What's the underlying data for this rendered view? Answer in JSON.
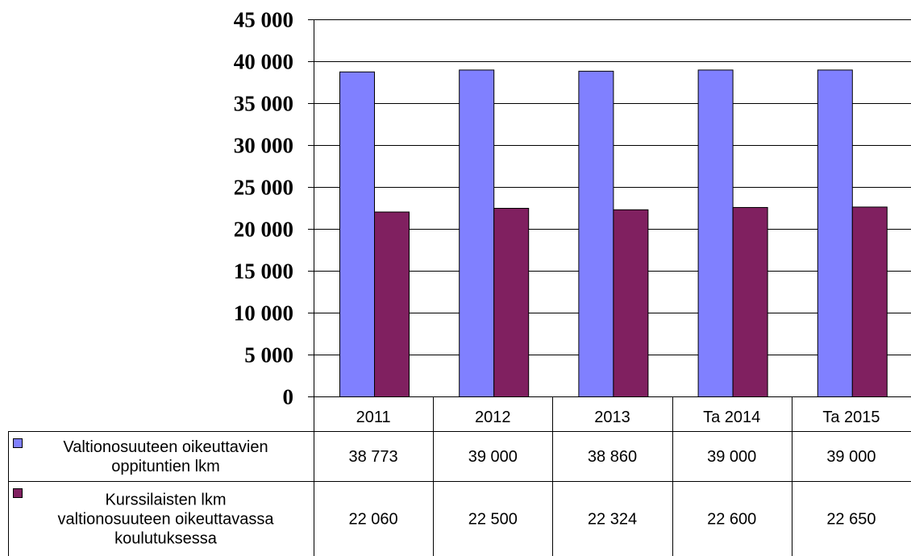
{
  "chart_data": {
    "type": "bar",
    "categories": [
      "2011",
      "2012",
      "2013",
      "Ta 2014",
      "Ta 2015"
    ],
    "series": [
      {
        "name": "Valtionosuuteen oikeuttavien oppituntien lkm",
        "name_lines": [
          "Valtionosuuteen oikeuttavien",
          "oppituntien lkm"
        ],
        "color": "#8080ff",
        "values": [
          38773,
          39000,
          38860,
          39000,
          39000
        ],
        "value_labels": [
          "38 773",
          "39 000",
          "38 860",
          "39 000",
          "39 000"
        ]
      },
      {
        "name": "Kurssilaisten lkm valtionosuuteen oikeuttavassa koulutuksessa",
        "name_lines": [
          "Kurssilaisten lkm",
          "valtionosuuteen oikeuttavassa",
          "koulutuksessa"
        ],
        "color": "#802060",
        "values": [
          22060,
          22500,
          22324,
          22600,
          22650
        ],
        "value_labels": [
          "22 060",
          "22 500",
          "22 324",
          "22 600",
          "22 650"
        ]
      }
    ],
    "ylim": [
      0,
      45000
    ],
    "yticks": [
      0,
      5000,
      10000,
      15000,
      20000,
      25000,
      30000,
      35000,
      40000,
      45000
    ],
    "ytick_labels": [
      "0",
      "5 000",
      "10 000",
      "15 000",
      "20 000",
      "25 000",
      "30 000",
      "35 000",
      "40 000",
      "45 000"
    ],
    "grid": true,
    "legend": "data-table"
  }
}
